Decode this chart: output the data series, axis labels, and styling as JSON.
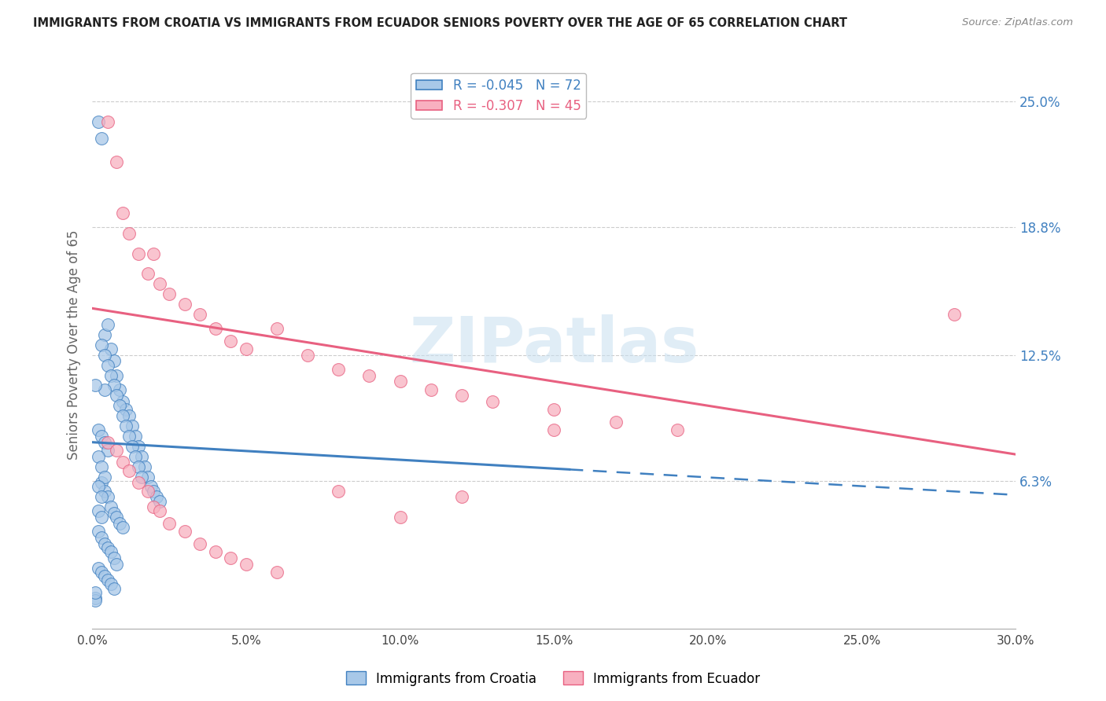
{
  "title": "IMMIGRANTS FROM CROATIA VS IMMIGRANTS FROM ECUADOR SENIORS POVERTY OVER THE AGE OF 65 CORRELATION CHART",
  "source": "Source: ZipAtlas.com",
  "ylabel": "Seniors Poverty Over the Age of 65",
  "xlim": [
    0.0,
    0.3
  ],
  "ylim": [
    -0.01,
    0.27
  ],
  "xtick_labels": [
    "0.0%",
    "5.0%",
    "10.0%",
    "15.0%",
    "20.0%",
    "25.0%",
    "30.0%"
  ],
  "xtick_vals": [
    0.0,
    0.05,
    0.1,
    0.15,
    0.2,
    0.25,
    0.3
  ],
  "ytick_labels_right": [
    "6.3%",
    "12.5%",
    "18.8%",
    "25.0%"
  ],
  "ytick_vals_right": [
    0.063,
    0.125,
    0.188,
    0.25
  ],
  "legend_r_croatia": "-0.045",
  "legend_n_croatia": "72",
  "legend_r_ecuador": "-0.307",
  "legend_n_ecuador": "45",
  "croatia_color": "#a8c8e8",
  "ecuador_color": "#f8b0c0",
  "trendline_croatia_color": "#4080c0",
  "trendline_ecuador_color": "#e86080",
  "watermark": "ZIPatlas",
  "trendline_croatia_x0": 0.0,
  "trendline_croatia_y0": 0.082,
  "trendline_croatia_x1": 0.3,
  "trendline_croatia_y1": 0.056,
  "trendline_croatia_solid_end": 0.155,
  "trendline_ecuador_x0": 0.0,
  "trendline_ecuador_y0": 0.148,
  "trendline_ecuador_x1": 0.3,
  "trendline_ecuador_y1": 0.076,
  "croatia_x": [
    0.002,
    0.003,
    0.004,
    0.005,
    0.006,
    0.007,
    0.008,
    0.009,
    0.01,
    0.011,
    0.012,
    0.013,
    0.014,
    0.015,
    0.016,
    0.017,
    0.018,
    0.019,
    0.02,
    0.021,
    0.022,
    0.003,
    0.004,
    0.005,
    0.006,
    0.007,
    0.008,
    0.009,
    0.01,
    0.011,
    0.012,
    0.013,
    0.014,
    0.015,
    0.016,
    0.003,
    0.004,
    0.005,
    0.006,
    0.007,
    0.008,
    0.009,
    0.01,
    0.002,
    0.003,
    0.004,
    0.005,
    0.006,
    0.007,
    0.008,
    0.002,
    0.003,
    0.004,
    0.005,
    0.006,
    0.007,
    0.002,
    0.003,
    0.004,
    0.005,
    0.002,
    0.003,
    0.004,
    0.002,
    0.003,
    0.002,
    0.003,
    0.004,
    0.001,
    0.001,
    0.001,
    0.001
  ],
  "croatia_y": [
    0.24,
    0.232,
    0.135,
    0.14,
    0.128,
    0.122,
    0.115,
    0.108,
    0.102,
    0.098,
    0.095,
    0.09,
    0.085,
    0.08,
    0.075,
    0.07,
    0.065,
    0.06,
    0.058,
    0.055,
    0.053,
    0.13,
    0.125,
    0.12,
    0.115,
    0.11,
    0.105,
    0.1,
    0.095,
    0.09,
    0.085,
    0.08,
    0.075,
    0.07,
    0.065,
    0.062,
    0.058,
    0.055,
    0.05,
    0.047,
    0.045,
    0.042,
    0.04,
    0.038,
    0.035,
    0.032,
    0.03,
    0.028,
    0.025,
    0.022,
    0.02,
    0.018,
    0.016,
    0.014,
    0.012,
    0.01,
    0.088,
    0.085,
    0.082,
    0.078,
    0.075,
    0.07,
    0.065,
    0.06,
    0.055,
    0.048,
    0.045,
    0.108,
    0.005,
    0.004,
    0.008,
    0.11
  ],
  "ecuador_x": [
    0.005,
    0.008,
    0.01,
    0.012,
    0.015,
    0.018,
    0.02,
    0.022,
    0.025,
    0.03,
    0.035,
    0.04,
    0.045,
    0.05,
    0.06,
    0.07,
    0.08,
    0.09,
    0.1,
    0.11,
    0.12,
    0.13,
    0.15,
    0.17,
    0.19,
    0.005,
    0.008,
    0.01,
    0.012,
    0.015,
    0.018,
    0.02,
    0.022,
    0.025,
    0.03,
    0.035,
    0.04,
    0.045,
    0.05,
    0.06,
    0.28,
    0.15,
    0.12,
    0.1,
    0.08
  ],
  "ecuador_y": [
    0.24,
    0.22,
    0.195,
    0.185,
    0.175,
    0.165,
    0.175,
    0.16,
    0.155,
    0.15,
    0.145,
    0.138,
    0.132,
    0.128,
    0.138,
    0.125,
    0.118,
    0.115,
    0.112,
    0.108,
    0.105,
    0.102,
    0.098,
    0.092,
    0.088,
    0.082,
    0.078,
    0.072,
    0.068,
    0.062,
    0.058,
    0.05,
    0.048,
    0.042,
    0.038,
    0.032,
    0.028,
    0.025,
    0.022,
    0.018,
    0.145,
    0.088,
    0.055,
    0.045,
    0.058
  ]
}
